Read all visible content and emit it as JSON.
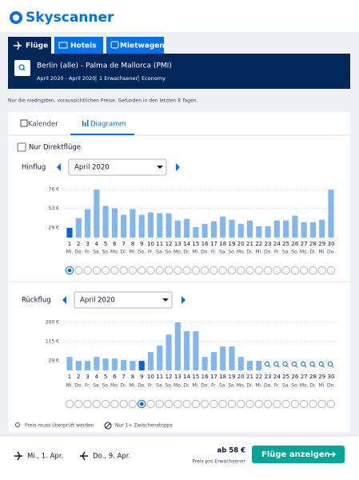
{
  "header": {
    "logo": "Skyscanner"
  },
  "tabs": [
    "Flüge",
    "Hotels",
    "Mietwagen"
  ],
  "search": {
    "route": "Berlin (alle) - Palma de Mallorca (PMI)",
    "details": [
      "April 2020 - April 2020",
      "1 Erwachsener",
      "Economy"
    ]
  },
  "note": "Nur die niedrigsten, voraussichtlichen Preise. Gefunden in den letzten 8 Tagen.",
  "view_tabs": [
    "Kalender",
    "Diagramm"
  ],
  "filter": "Nur Direktflüge",
  "charts": [
    {
      "type": "bar",
      "label": "Hinflug",
      "month": "April 2020",
      "categories": [
        "1",
        "2",
        "3",
        "4",
        "5",
        "6",
        "7",
        "8",
        "9",
        "10",
        "11",
        "12",
        "13",
        "14",
        "15",
        "16",
        "17",
        "18",
        "19",
        "20",
        "21",
        "22",
        "23",
        "24",
        "25",
        "26",
        "27",
        "28",
        "29",
        "30"
      ],
      "weekdays": [
        "Mi.",
        "Do.",
        "Fr.",
        "Sa.",
        "So.",
        "Mo.",
        "Di.",
        "Mi.",
        "Do.",
        "Fr.",
        "Sa.",
        "So.",
        "Mo.",
        "Di.",
        "Mi.",
        "Do.",
        "Fr.",
        "Sa.",
        "So.",
        "Mo.",
        "Di.",
        "Mi.",
        "Do.",
        "Fr.",
        "Sa.",
        "So.",
        "Mo.",
        "Di.",
        "Mi.",
        "Do."
      ],
      "values": [
        29,
        41,
        52,
        76,
        56,
        53,
        45,
        52,
        45,
        48,
        47,
        47,
        38,
        40,
        30,
        34,
        37,
        43,
        39,
        34,
        38,
        31,
        31,
        38,
        38,
        44,
        36,
        36,
        39,
        76
      ],
      "ylim": [
        17,
        78
      ],
      "yticks": [
        {
          "value": 29,
          "label": "29 €"
        },
        {
          "value": 53,
          "label": "53 €"
        },
        {
          "value": 76,
          "label": "76 €"
        }
      ],
      "grid": true,
      "color": "#84b6ee",
      "selected_color": "#0b63cf",
      "selected_index": 0
    },
    {
      "type": "bar",
      "label": "Rückflug",
      "month": "April 2020",
      "categories": [
        "1",
        "2",
        "3",
        "4",
        "5",
        "6",
        "7",
        "8",
        "9",
        "10",
        "11",
        "12",
        "13",
        "14",
        "15",
        "16",
        "17",
        "18",
        "19",
        "20",
        "21",
        "22",
        "23",
        "24",
        "25",
        "26",
        "27",
        "28",
        "29",
        "30"
      ],
      "weekdays": [
        "Mi.",
        "Do.",
        "Fr.",
        "Sa.",
        "So.",
        "Mo.",
        "Di.",
        "Mi.",
        "Do.",
        "Fr.",
        "Sa.",
        "So.",
        "Mo.",
        "Di.",
        "Mi.",
        "Do.",
        "Fr.",
        "Sa.",
        "So.",
        "Mo.",
        "Di.",
        "Mi.",
        "Do.",
        "Fr.",
        "Sa.",
        "So.",
        "Mo.",
        "Di.",
        "Mi.",
        "Do."
      ],
      "values": [
        47,
        29,
        29,
        47,
        40,
        40,
        33,
        29,
        29,
        68,
        97,
        146,
        200,
        161,
        161,
        47,
        68,
        93,
        93,
        47,
        29,
        29,
        null,
        null,
        null,
        null,
        null,
        null,
        null,
        null
      ],
      "ylim": [
        -13,
        205
      ],
      "yticks": [
        {
          "value": 29,
          "label": "29 €"
        },
        {
          "value": 115,
          "label": "115 €"
        },
        {
          "value": 200,
          "label": "200 €"
        }
      ],
      "grid": true,
      "color": "#84b6ee",
      "selected_color": "#0b63cf",
      "selected_index": 8
    }
  ],
  "legend": [
    "Preis muss überprüft werden",
    "Nur 1+ Zwischenstopps"
  ],
  "footer": {
    "outbound": "Mi., 1. Apr.",
    "return": "Do., 9. Apr.",
    "price": "ab 58 €",
    "price_note": "Preis pro Erwachsener",
    "button": "Flüge anzeigen"
  }
}
